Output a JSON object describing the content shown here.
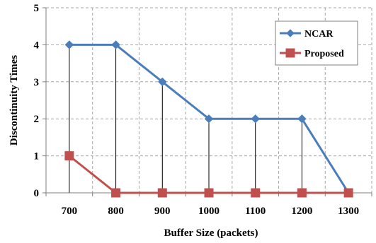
{
  "chart_data": {
    "type": "line",
    "x": [
      700,
      800,
      900,
      1000,
      1100,
      1200,
      1300
    ],
    "xticks": [
      "700",
      "800",
      "900",
      "1000",
      "1100",
      "1200",
      "1300"
    ],
    "yticks": [
      "0",
      "1",
      "2",
      "3",
      "4",
      "5"
    ],
    "xlabel": "Buffer Size (packets)",
    "ylabel": "Discontinuity Times",
    "ylim": [
      0,
      5
    ],
    "grid": "dashed",
    "legend": "top-right",
    "drop_lines": true,
    "series": [
      {
        "name": "NCAR",
        "values": [
          4,
          4,
          3,
          2,
          2,
          2,
          0
        ],
        "color": "#4a7ebb",
        "marker": "diamond"
      },
      {
        "name": "Proposed",
        "values": [
          1,
          0,
          0,
          0,
          0,
          0,
          0
        ],
        "color": "#c0504d",
        "marker": "square"
      }
    ]
  }
}
